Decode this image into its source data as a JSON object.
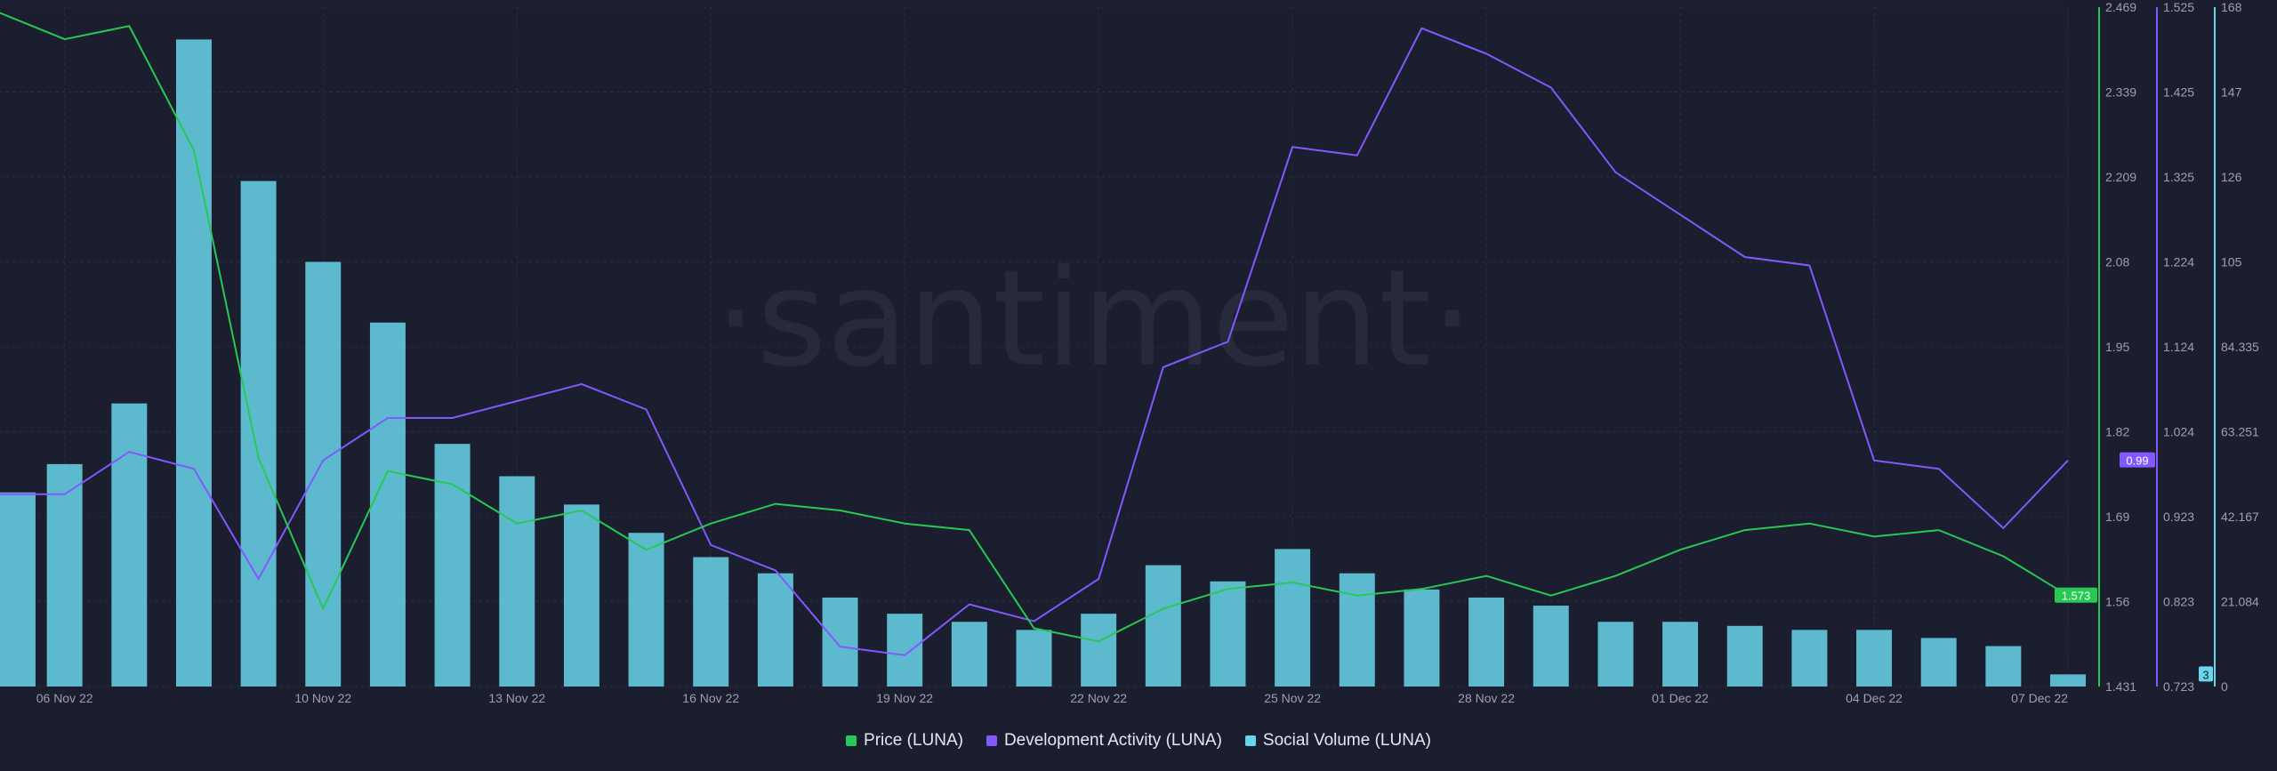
{
  "watermark": "·santiment·",
  "colors": {
    "background": "#1b1e2e",
    "grid": "#2b2f42",
    "price": "#26c953",
    "dev": "#8358ff",
    "social": "#68d6ea",
    "tick_text": "#9aa0b4",
    "watermark": "#262a3b"
  },
  "chart_data": {
    "type": "line",
    "title": "",
    "x_tick_labels": [
      "06 Nov 22",
      "10 Nov 22",
      "13 Nov 22",
      "16 Nov 22",
      "19 Nov 22",
      "22 Nov 22",
      "25 Nov 22",
      "28 Nov 22",
      "01 Dec 22",
      "04 Dec 22",
      "07 Dec 22"
    ],
    "x_range": [
      "05 Nov 22",
      "07 Dec 22"
    ],
    "grid": true,
    "legend_position": "bottom-center",
    "series": [
      {
        "name": "Price (LUNA)",
        "type": "line",
        "axis": "price",
        "last_value_label": "1.573",
        "x": [
          "05 Nov 22",
          "06 Nov 22",
          "07 Nov 22",
          "08 Nov 22",
          "09 Nov 22",
          "10 Nov 22",
          "11 Nov 22",
          "12 Nov 22",
          "13 Nov 22",
          "14 Nov 22",
          "15 Nov 22",
          "16 Nov 22",
          "17 Nov 22",
          "18 Nov 22",
          "19 Nov 22",
          "20 Nov 22",
          "21 Nov 22",
          "22 Nov 22",
          "23 Nov 22",
          "24 Nov 22",
          "25 Nov 22",
          "26 Nov 22",
          "27 Nov 22",
          "28 Nov 22",
          "29 Nov 22",
          "30 Nov 22",
          "01 Dec 22",
          "02 Dec 22",
          "03 Dec 22",
          "04 Dec 22",
          "05 Dec 22",
          "06 Dec 22",
          "07 Dec 22"
        ],
        "values": [
          2.46,
          2.42,
          2.44,
          2.25,
          1.78,
          1.55,
          1.76,
          1.74,
          1.68,
          1.7,
          1.64,
          1.68,
          1.71,
          1.7,
          1.68,
          1.67,
          1.52,
          1.5,
          1.55,
          1.58,
          1.59,
          1.57,
          1.58,
          1.6,
          1.57,
          1.6,
          1.64,
          1.67,
          1.68,
          1.66,
          1.67,
          1.63,
          1.57
        ]
      },
      {
        "name": "Development Activity (LUNA)",
        "type": "line",
        "axis": "dev",
        "last_value_label": "0.99",
        "x": [
          "05 Nov 22",
          "06 Nov 22",
          "07 Nov 22",
          "08 Nov 22",
          "09 Nov 22",
          "10 Nov 22",
          "11 Nov 22",
          "12 Nov 22",
          "13 Nov 22",
          "14 Nov 22",
          "15 Nov 22",
          "16 Nov 22",
          "17 Nov 22",
          "18 Nov 22",
          "19 Nov 22",
          "20 Nov 22",
          "21 Nov 22",
          "22 Nov 22",
          "23 Nov 22",
          "24 Nov 22",
          "25 Nov 22",
          "26 Nov 22",
          "27 Nov 22",
          "28 Nov 22",
          "29 Nov 22",
          "30 Nov 22",
          "01 Dec 22",
          "02 Dec 22",
          "03 Dec 22",
          "04 Dec 22",
          "05 Dec 22",
          "06 Dec 22",
          "07 Dec 22"
        ],
        "values": [
          0.95,
          0.95,
          1.0,
          0.98,
          0.85,
          0.99,
          1.04,
          1.04,
          1.06,
          1.08,
          1.05,
          0.89,
          0.86,
          0.77,
          0.76,
          0.82,
          0.8,
          0.85,
          1.1,
          1.13,
          1.36,
          1.35,
          1.5,
          1.47,
          1.43,
          1.33,
          1.28,
          1.23,
          1.22,
          0.99,
          0.98,
          0.91,
          0.99
        ]
      },
      {
        "name": "Social Volume (LUNA)",
        "type": "bar",
        "axis": "social",
        "last_value_label": "3",
        "x": [
          "05 Nov 22",
          "06 Nov 22",
          "07 Nov 22",
          "08 Nov 22",
          "09 Nov 22",
          "10 Nov 22",
          "11 Nov 22",
          "12 Nov 22",
          "13 Nov 22",
          "14 Nov 22",
          "15 Nov 22",
          "16 Nov 22",
          "17 Nov 22",
          "18 Nov 22",
          "19 Nov 22",
          "20 Nov 22",
          "21 Nov 22",
          "22 Nov 22",
          "23 Nov 22",
          "24 Nov 22",
          "25 Nov 22",
          "26 Nov 22",
          "27 Nov 22",
          "28 Nov 22",
          "29 Nov 22",
          "30 Nov 22",
          "01 Dec 22",
          "02 Dec 22",
          "03 Dec 22",
          "04 Dec 22",
          "05 Dec 22",
          "06 Dec 22",
          "07 Dec 22"
        ],
        "values": [
          48,
          55,
          70,
          160,
          125,
          105,
          90,
          60,
          52,
          45,
          38,
          32,
          28,
          22,
          18,
          16,
          14,
          18,
          30,
          26,
          34,
          28,
          24,
          22,
          20,
          16,
          16,
          15,
          14,
          14,
          12,
          10,
          3
        ]
      }
    ],
    "axes": [
      {
        "id": "price",
        "ticks": [
          "2.469",
          "2.339",
          "2.209",
          "2.08",
          "1.95",
          "1.82",
          "1.69",
          "1.56",
          "1.431"
        ],
        "range": [
          1.431,
          2.469
        ]
      },
      {
        "id": "dev",
        "ticks": [
          "1.525",
          "1.425",
          "1.325",
          "1.224",
          "1.124",
          "1.024",
          "0.923",
          "0.823",
          "0.723"
        ],
        "range": [
          0.723,
          1.525
        ]
      },
      {
        "id": "social",
        "ticks": [
          "168",
          "147",
          "126",
          "105",
          "84.335",
          "63.251",
          "42.167",
          "21.084",
          "0"
        ],
        "range": [
          0,
          168
        ]
      }
    ]
  }
}
